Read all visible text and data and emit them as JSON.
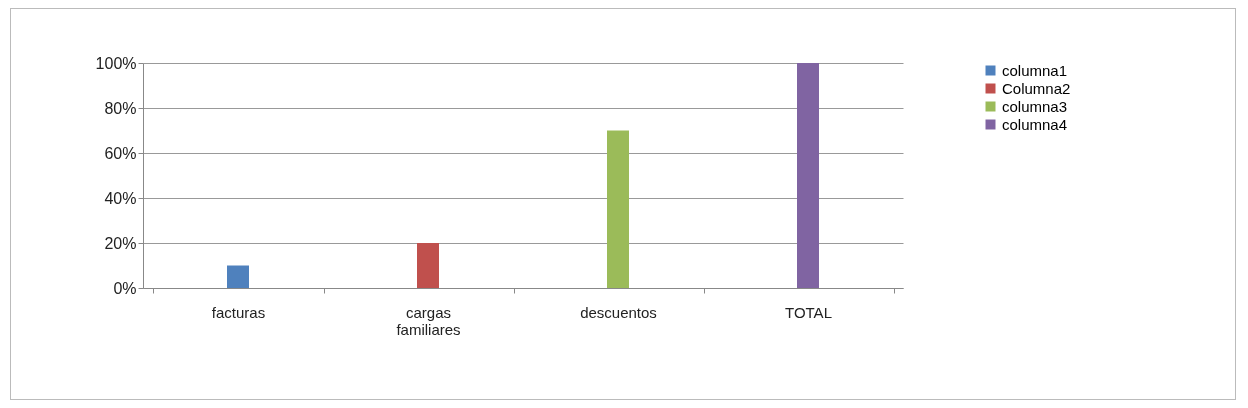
{
  "chart_data": {
    "type": "bar",
    "categories": [
      "facturas",
      "cargas familiares",
      "descuentos",
      "TOTAL"
    ],
    "series": [
      {
        "name": "columna1",
        "color": "#4f81bd",
        "values": [
          10,
          null,
          null,
          null
        ]
      },
      {
        "name": "Columna2",
        "color": "#c0504d",
        "values": [
          null,
          20,
          null,
          null
        ]
      },
      {
        "name": "columna3",
        "color": "#9bbb59",
        "values": [
          null,
          null,
          70,
          null
        ]
      },
      {
        "name": "columna4",
        "color": "#8064a2",
        "values": [
          null,
          null,
          null,
          100
        ]
      }
    ],
    "ylim": [
      0,
      100
    ],
    "yticks": [
      {
        "value": 0,
        "label": "0%"
      },
      {
        "value": 20,
        "label": "20%"
      },
      {
        "value": 40,
        "label": "40%"
      },
      {
        "value": 60,
        "label": "60%"
      },
      {
        "value": 80,
        "label": "80%"
      },
      {
        "value": 100,
        "label": "100%"
      }
    ],
    "grid": "y",
    "legend": "right"
  }
}
